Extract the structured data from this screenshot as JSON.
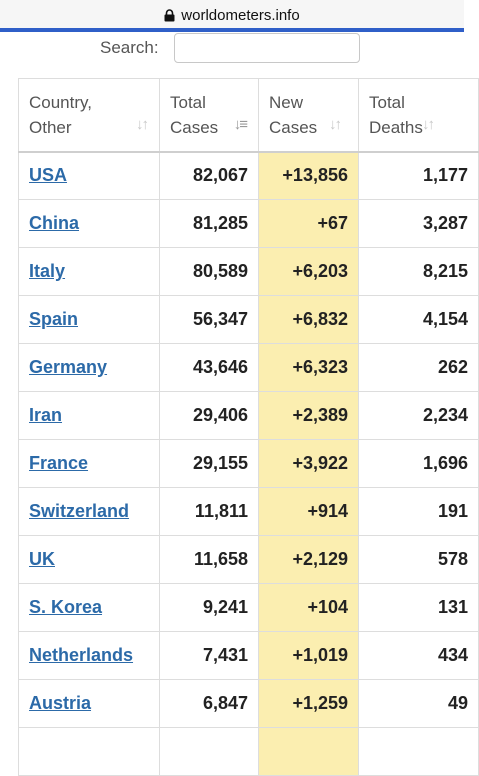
{
  "browser": {
    "domain": "worldometers.info"
  },
  "search": {
    "label": "Search:",
    "value": ""
  },
  "table": {
    "headers": [
      {
        "line1": "Country,",
        "line2": "Other"
      },
      {
        "line1": "Total",
        "line2": "Cases"
      },
      {
        "line1": "New",
        "line2": "Cases"
      },
      {
        "line1": "Total",
        "line2": "Deaths"
      }
    ],
    "rows": [
      {
        "country": "USA",
        "total": "82,067",
        "new": "+13,856",
        "deaths": "1,177"
      },
      {
        "country": "China",
        "total": "81,285",
        "new": "+67",
        "deaths": "3,287"
      },
      {
        "country": "Italy",
        "total": "80,589",
        "new": "+6,203",
        "deaths": "8,215"
      },
      {
        "country": "Spain",
        "total": "56,347",
        "new": "+6,832",
        "deaths": "4,154"
      },
      {
        "country": "Germany",
        "total": "43,646",
        "new": "+6,323",
        "deaths": "262"
      },
      {
        "country": "Iran",
        "total": "29,406",
        "new": "+2,389",
        "deaths": "2,234"
      },
      {
        "country": "France",
        "total": "29,155",
        "new": "+3,922",
        "deaths": "1,696"
      },
      {
        "country": "Switzerland",
        "total": "11,811",
        "new": "+914",
        "deaths": "191"
      },
      {
        "country": "UK",
        "total": "11,658",
        "new": "+2,129",
        "deaths": "578"
      },
      {
        "country": "S. Korea",
        "total": "9,241",
        "new": "+104",
        "deaths": "131"
      },
      {
        "country": "Netherlands",
        "total": "7,431",
        "new": "+1,019",
        "deaths": "434"
      },
      {
        "country": "Austria",
        "total": "6,847",
        "new": "+1,259",
        "deaths": "49"
      },
      {
        "country": "",
        "total": "",
        "new": "",
        "deaths": ""
      }
    ]
  },
  "colors": {
    "accent_line": "#2f5fc8",
    "link": "#2c6aa8",
    "new_cases_highlight": "#fbeeb0"
  },
  "icons": {
    "lock": "lock-icon",
    "sort": "sort-arrows-icon",
    "sort_active": "sort-descending-icon"
  }
}
